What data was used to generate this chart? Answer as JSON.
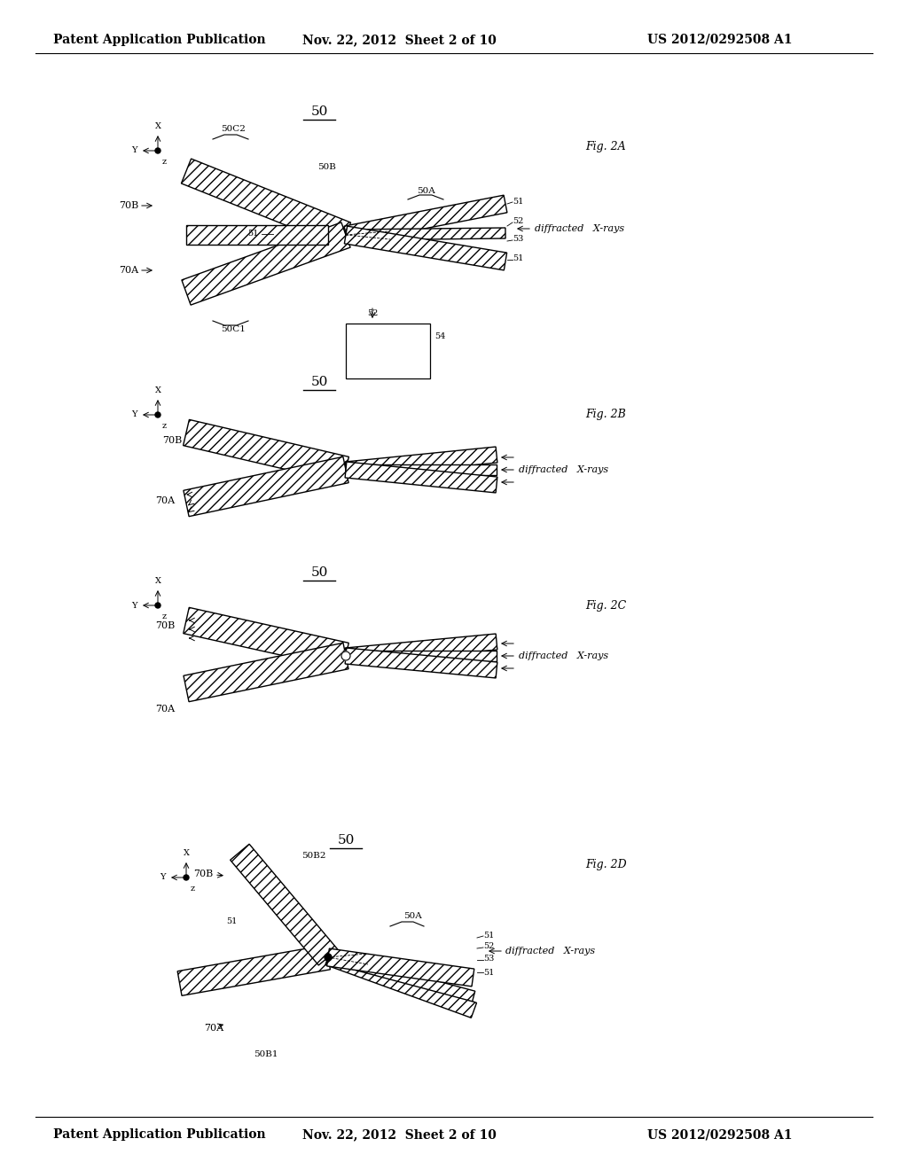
{
  "bg_color": "#ffffff",
  "header_left": "Patent Application Publication",
  "header_mid": "Nov. 22, 2012  Sheet 2 of 10",
  "header_right": "US 2012/0292508 A1",
  "header_fontsize": 10,
  "line_color": "#000000"
}
